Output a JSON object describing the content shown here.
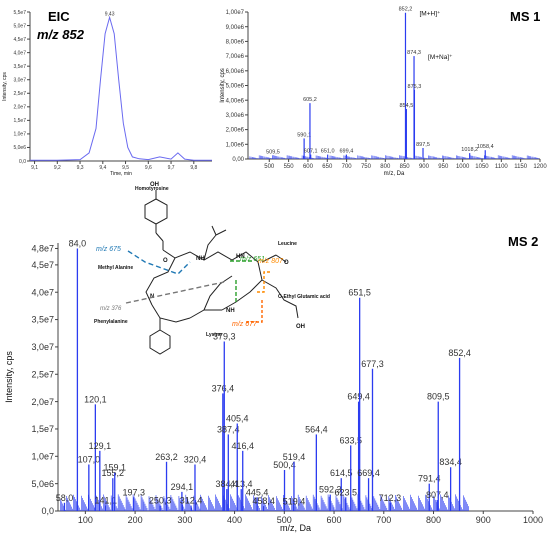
{
  "panels": {
    "eic": {
      "label": "EIC",
      "mz": "m/z 852"
    },
    "ms1": {
      "label": "MS 1"
    },
    "ms2": {
      "label": "MS 2"
    }
  },
  "molecule": {
    "residues": [
      "Homotyrosine",
      "Leucine",
      "Methyl Alanine",
      "O-Ethyl Glutamic acid",
      "Phenylalanine",
      "Lysine"
    ],
    "atoms": {
      "nh": "NH",
      "hn": "HN",
      "n": "N",
      "o": "O",
      "oh": "OH"
    },
    "fragments": [
      {
        "text": "m/z 675",
        "color": "#1f78b4"
      },
      {
        "text": "m/z 651",
        "color": "#2ca02c"
      },
      {
        "text": "m/z 807",
        "color": "#ff8c00"
      },
      {
        "text": "m/z 376",
        "color": "#777777"
      },
      {
        "text": "m/z 677",
        "color": "#ff6600"
      }
    ]
  },
  "chart_data": [
    {
      "type": "line",
      "name": "EIC",
      "xlabel": "Time, min",
      "ylabel": "Intensity, cps",
      "xlim": [
        9.08,
        9.88
      ],
      "ylim": [
        0,
        55000000
      ],
      "xticks": [
        "9,1",
        "9,2",
        "9,3",
        "9,4",
        "9,5",
        "9,6",
        "9,7",
        "9,8"
      ],
      "yticks": [
        "0,0",
        "5,0e6",
        "1,0e7",
        "1,5e7",
        "2,0e7",
        "2,5e7",
        "3,0e7",
        "3,5e7",
        "4,0e7",
        "4,5e7",
        "5,0e7",
        "5,5e7"
      ],
      "x": [
        9.08,
        9.2,
        9.3,
        9.34,
        9.37,
        9.39,
        9.41,
        9.43,
        9.45,
        9.47,
        9.49,
        9.51,
        9.53,
        9.56,
        9.6,
        9.65,
        9.7,
        9.73,
        9.76,
        9.8,
        9.85,
        9.88
      ],
      "y": [
        300000,
        300000,
        500000,
        3000000,
        12000000,
        30000000,
        47000000,
        53000000,
        47000000,
        30000000,
        14000000,
        5000000,
        1500000,
        800000,
        500000,
        1500000,
        700000,
        3000000,
        700000,
        300000,
        300000,
        300000
      ],
      "annotations": [
        {
          "x": 9.43,
          "text": "9,43"
        }
      ]
    },
    {
      "type": "bar",
      "name": "MS 1",
      "xlabel": "m/z, Da",
      "ylabel": "Intensity, cps",
      "xlim": [
        445,
        1200
      ],
      "ylim": [
        0,
        10000000
      ],
      "xticks": [
        "500",
        "550",
        "600",
        "650",
        "700",
        "750",
        "800",
        "850",
        "900",
        "950",
        "1000",
        "1050",
        "1100",
        "1150",
        "1200"
      ],
      "yticks": [
        "0,00",
        "1,00e6",
        "2,00e6",
        "3,00e6",
        "4,00e6",
        "5,00e6",
        "6,00e6",
        "7,00e6",
        "8,00e6",
        "9,00e6",
        "1,00e7"
      ],
      "peaks": [
        {
          "x": 509.5,
          "y": 250000,
          "label": "509,5"
        },
        {
          "x": 590.1,
          "y": 1400000,
          "label": "590,1"
        },
        {
          "x": 605.2,
          "y": 3800000,
          "label": "605,2"
        },
        {
          "x": 607.1,
          "y": 300000,
          "label": "607,1"
        },
        {
          "x": 651.0,
          "y": 300000,
          "label": "651,0"
        },
        {
          "x": 699.4,
          "y": 300000,
          "label": "699,4"
        },
        {
          "x": 852.2,
          "y": 9950000,
          "label": "852,2"
        },
        {
          "x": 854.5,
          "y": 3400000,
          "label": "854,5"
        },
        {
          "x": 874.3,
          "y": 7000000,
          "label": "874,3"
        },
        {
          "x": 875.3,
          "y": 4700000,
          "label": "875,3"
        },
        {
          "x": 897.5,
          "y": 750000,
          "label": "897,5"
        },
        {
          "x": 1018.2,
          "y": 400000,
          "label": "1018,2"
        },
        {
          "x": 1058.4,
          "y": 600000,
          "label": "1058,4"
        }
      ],
      "annotations": [
        "[M+H]⁺",
        "[M+Na]⁺"
      ]
    },
    {
      "type": "bar",
      "name": "MS 2",
      "xlabel": "m/z, Da",
      "ylabel": "Intensity, cps",
      "xlim": [
        45,
        1000
      ],
      "ylim": [
        0,
        49000000
      ],
      "xticks": [
        "100",
        "200",
        "300",
        "400",
        "500",
        "600",
        "700",
        "800",
        "900",
        "1000"
      ],
      "yticks": [
        "0,0",
        "5,0e6",
        "1,0e7",
        "1,5e7",
        "2,0e7",
        "2,5e7",
        "3,0e7",
        "3,5e7",
        "4,0e7",
        "4,5e7",
        "4,8e7"
      ],
      "peaks": [
        {
          "x": 58.0,
          "y": 1500000,
          "label": "58,0"
        },
        {
          "x": 84.0,
          "y": 48000000,
          "label": "84,0"
        },
        {
          "x": 107.0,
          "y": 8500000,
          "label": "107,0"
        },
        {
          "x": 120.1,
          "y": 19500000,
          "label": "120,1"
        },
        {
          "x": 129.1,
          "y": 11000000,
          "label": "129,1"
        },
        {
          "x": 141.1,
          "y": 1000000,
          "label": "141,1"
        },
        {
          "x": 155.2,
          "y": 6000000,
          "label": "155,2"
        },
        {
          "x": 159.1,
          "y": 7000000,
          "label": "159,1"
        },
        {
          "x": 197.3,
          "y": 2500000,
          "label": "197,3"
        },
        {
          "x": 250.3,
          "y": 1000000,
          "label": "250,3"
        },
        {
          "x": 263.2,
          "y": 9000000,
          "label": "263,2"
        },
        {
          "x": 294.1,
          "y": 3500000,
          "label": "294,1"
        },
        {
          "x": 312.4,
          "y": 1000000,
          "label": "312,4"
        },
        {
          "x": 320.4,
          "y": 8500000,
          "label": "320,4"
        },
        {
          "x": 376.4,
          "y": 21500000,
          "label": "376,4"
        },
        {
          "x": 379.3,
          "y": 31000000,
          "label": "379,3"
        },
        {
          "x": 384.4,
          "y": 4000000,
          "label": "384,4"
        },
        {
          "x": 387.4,
          "y": 14000000,
          "label": "387,4"
        },
        {
          "x": 405.4,
          "y": 16000000,
          "label": "405,4"
        },
        {
          "x": 413.4,
          "y": 4000000,
          "label": "413,4"
        },
        {
          "x": 416.4,
          "y": 11000000,
          "label": "416,4"
        },
        {
          "x": 445.4,
          "y": 2500000,
          "label": "445,4"
        },
        {
          "x": 458.4,
          "y": 900000,
          "label": "458,4"
        },
        {
          "x": 500.4,
          "y": 7500000,
          "label": "500,4"
        },
        {
          "x": 519.4,
          "y": 9000000,
          "label": "519,4"
        },
        {
          "x": 519.4,
          "y": 800000,
          "label": "519,4"
        },
        {
          "x": 564.4,
          "y": 14000000,
          "label": "564,4"
        },
        {
          "x": 592.3,
          "y": 3000000,
          "label": "592,3"
        },
        {
          "x": 614.5,
          "y": 6000000,
          "label": "614,5"
        },
        {
          "x": 623.5,
          "y": 2500000,
          "label": "623,5"
        },
        {
          "x": 633.5,
          "y": 12000000,
          "label": "633,5"
        },
        {
          "x": 649.4,
          "y": 20000000,
          "label": "649,4"
        },
        {
          "x": 651.5,
          "y": 39000000,
          "label": "651,5"
        },
        {
          "x": 669.4,
          "y": 6000000,
          "label": "669,4"
        },
        {
          "x": 677.3,
          "y": 26000000,
          "label": "677,3"
        },
        {
          "x": 712.3,
          "y": 1500000,
          "label": "712,3"
        },
        {
          "x": 791.4,
          "y": 5000000,
          "label": "791,4"
        },
        {
          "x": 807.4,
          "y": 2000000,
          "label": "807,4"
        },
        {
          "x": 809.5,
          "y": 20000000,
          "label": "809,5"
        },
        {
          "x": 834.4,
          "y": 8000000,
          "label": "834,4"
        },
        {
          "x": 852.4,
          "y": 28000000,
          "label": "852,4"
        }
      ]
    }
  ]
}
